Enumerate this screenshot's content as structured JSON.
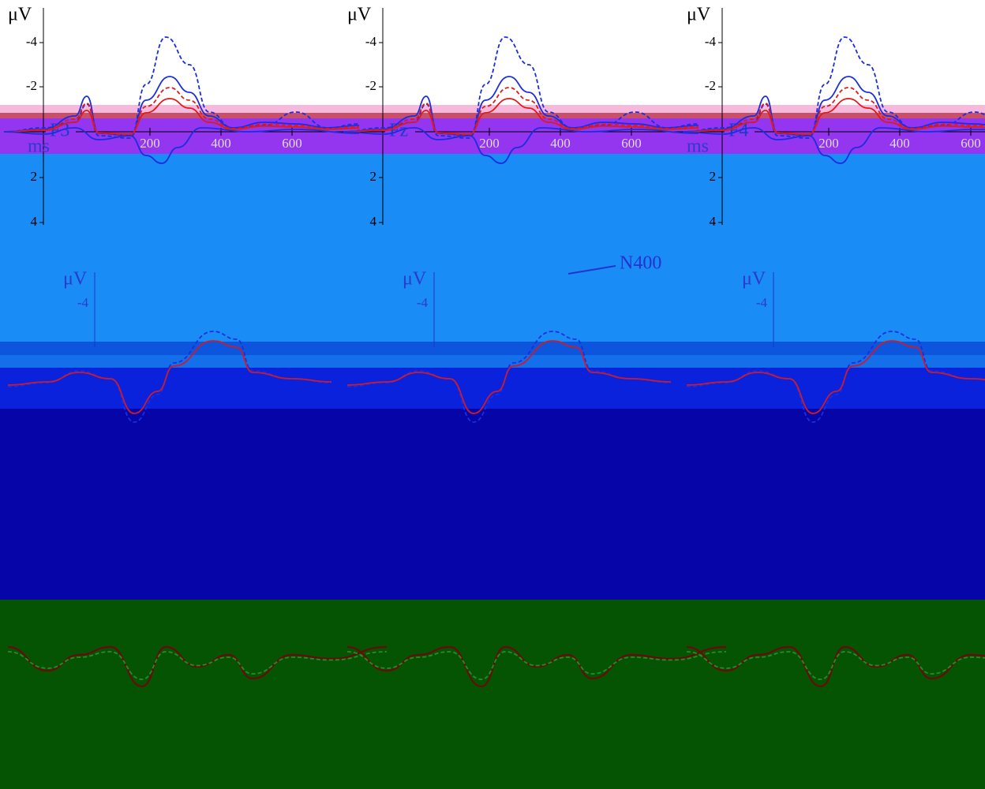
{
  "panels": [
    {
      "electrode": "F3",
      "y_unit": "μV",
      "x_unit": "ms",
      "y_ticks": [
        "-4",
        "-2",
        "2",
        "4"
      ],
      "x_ticks": [
        "200",
        "400",
        "600"
      ]
    },
    {
      "electrode": "Fz",
      "y_unit": "μV",
      "x_unit": "ms",
      "y_ticks": [
        "-4",
        "-2",
        "2",
        "4"
      ],
      "x_ticks": [
        "200",
        "400",
        "600"
      ]
    },
    {
      "electrode": "F4",
      "y_unit": "μV",
      "x_unit": "ms",
      "y_ticks": [
        "-4",
        "-2",
        "2",
        "4"
      ],
      "x_ticks": [
        "200",
        "400",
        "600"
      ]
    }
  ],
  "lower_panels": [
    {
      "y_unit": "μV",
      "y_ticks": [
        "-4"
      ]
    },
    {
      "y_unit": "μV",
      "y_ticks": [
        "-4"
      ]
    },
    {
      "y_unit": "μV",
      "y_ticks": [
        "-4"
      ]
    }
  ],
  "annotation": "N400"
}
